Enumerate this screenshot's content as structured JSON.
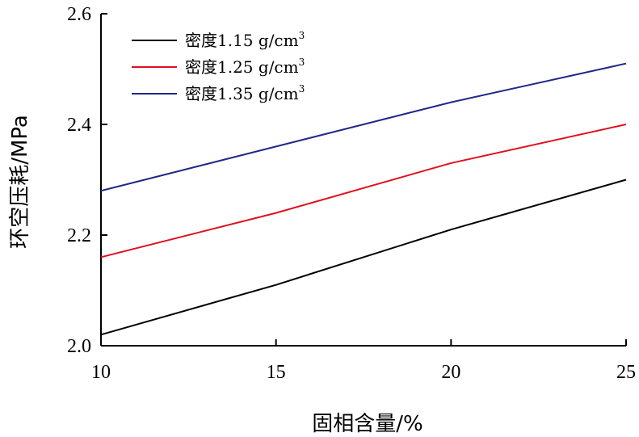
{
  "chart_data": {
    "type": "line",
    "xlabel": "固相含量/%",
    "ylabel": "环空压耗/MPa",
    "x": [
      10,
      15,
      20,
      25
    ],
    "xlim": [
      10,
      25
    ],
    "ylim": [
      2.0,
      2.6
    ],
    "x_ticks": [
      "10",
      "15",
      "20",
      "25"
    ],
    "y_ticks": [
      "2.0",
      "2.2",
      "2.4",
      "2.6"
    ],
    "grid": false,
    "legend_position": "top-left",
    "series": [
      {
        "name": "密度1.15 g/cm³",
        "legend_prefix": "密度1.15 g/cm",
        "legend_sup": "3",
        "color": "#000000",
        "values": [
          2.02,
          2.11,
          2.21,
          2.3
        ]
      },
      {
        "name": "密度1.25 g/cm³",
        "legend_prefix": "密度1.25 g/cm",
        "legend_sup": "3",
        "color": "#e0101e",
        "values": [
          2.16,
          2.24,
          2.33,
          2.4
        ]
      },
      {
        "name": "密度1.35 g/cm³",
        "legend_prefix": "密度1.35 g/cm",
        "legend_sup": "3",
        "color": "#1f2a85",
        "values": [
          2.28,
          2.36,
          2.44,
          2.51
        ]
      }
    ]
  }
}
